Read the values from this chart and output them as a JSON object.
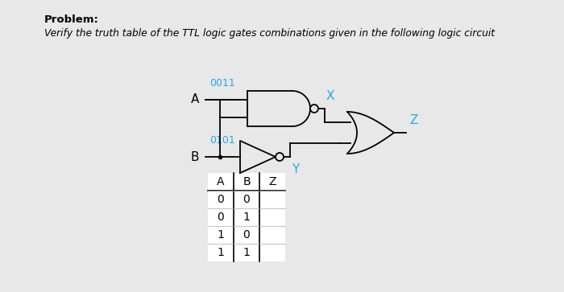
{
  "title_line1": "Problem:",
  "title_line2": "Verify the truth table of the TTL logic gates combinations given in the following logic circuit",
  "bg_color": "#e8e8e8",
  "label_A": "A",
  "label_B": "B",
  "label_X": "X",
  "label_Y": "Y",
  "label_Z": "Z",
  "seq_A": "0011",
  "seq_B": "0101",
  "table_headers": [
    "A",
    "B",
    "Z"
  ],
  "table_data": [
    [
      "0",
      "0",
      ""
    ],
    [
      "0",
      "1",
      ""
    ],
    [
      "1",
      "0",
      ""
    ],
    [
      "1",
      "1",
      ""
    ]
  ],
  "accent_color": "#29a8e0",
  "gate_color": "#000000",
  "text_color": "#000000",
  "fig_w": 7.0,
  "fig_h": 3.63,
  "dpi": 100
}
